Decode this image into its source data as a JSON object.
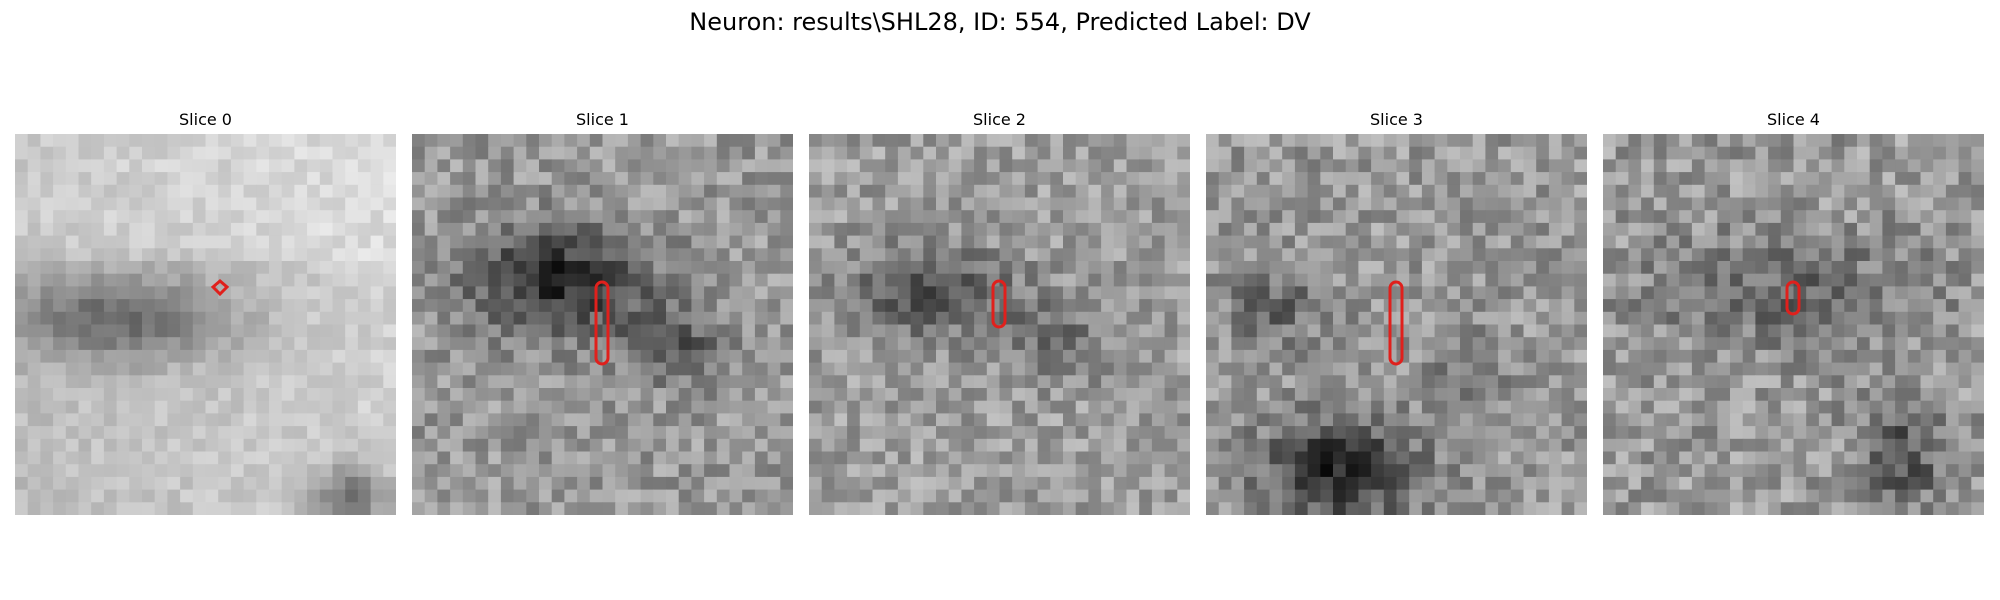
{
  "figure": {
    "title": "Neuron: results\\SHL28, ID: 554, Predicted Label: DV"
  },
  "panels": [
    {
      "title": "Slice 0"
    },
    {
      "title": "Slice 1"
    },
    {
      "title": "Slice 2"
    },
    {
      "title": "Slice 3"
    },
    {
      "title": "Slice 4"
    }
  ],
  "colors": {
    "contour": "#e0201c",
    "colormap": "gray"
  }
}
